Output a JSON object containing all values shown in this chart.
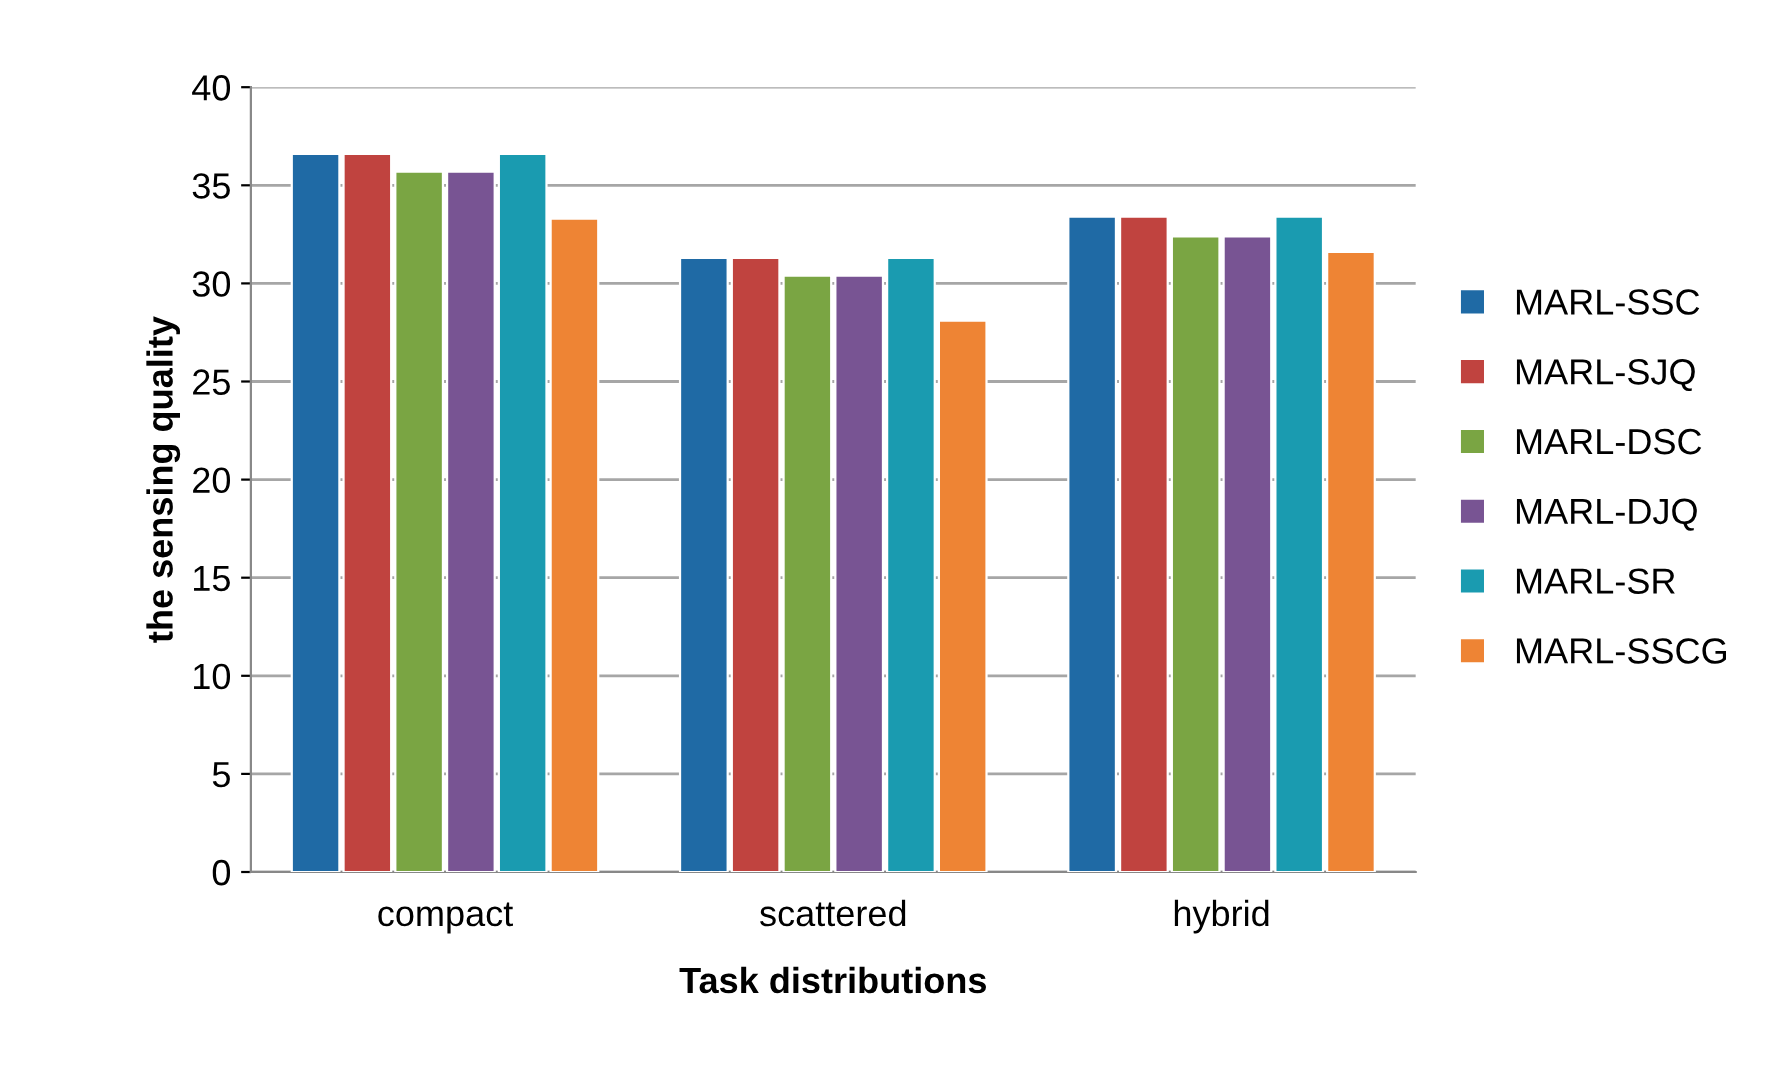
{
  "chart_data": {
    "type": "bar",
    "xlabel": "Task distributions",
    "ylabel": "the sensing quality",
    "categories": [
      "compact",
      "scattered",
      "hybrid"
    ],
    "series": [
      {
        "name": "MARL-SSC",
        "color": "#1f6aa5",
        "values": [
          36.6,
          31.3,
          33.4
        ]
      },
      {
        "name": "MARL-SJQ",
        "color": "#c0433f",
        "values": [
          36.6,
          31.3,
          33.4
        ]
      },
      {
        "name": "MARL-DSC",
        "color": "#7aa543",
        "values": [
          35.7,
          30.4,
          32.4
        ]
      },
      {
        "name": "MARL-DJQ",
        "color": "#785493",
        "values": [
          35.7,
          30.4,
          32.4
        ]
      },
      {
        "name": "MARL-SR",
        "color": "#1a9bb0",
        "values": [
          36.6,
          31.3,
          33.4
        ]
      },
      {
        "name": "MARL-SSCG",
        "color": "#ee8434",
        "values": [
          33.3,
          28.1,
          31.6
        ]
      }
    ],
    "ylim": [
      0,
      40
    ],
    "yticks": [
      0,
      5,
      10,
      15,
      20,
      25,
      30,
      35,
      40
    ],
    "grid": "y",
    "legend": "right"
  }
}
